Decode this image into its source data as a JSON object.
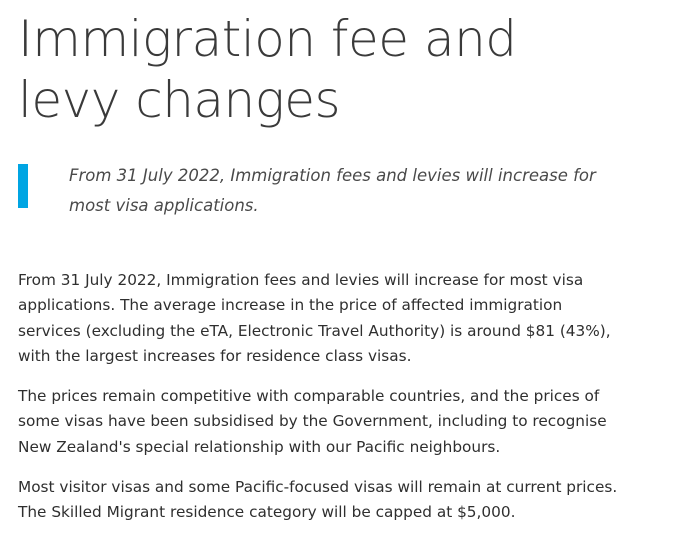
{
  "article": {
    "title": "Immigration fee and levy changes",
    "summary": "From 31 July 2022, Immigration fees and levies will increase for most visa applications.",
    "paragraphs": [
      "From 31 July 2022, Immigration fees and levies will increase for most visa applications. The average increase in the price of affected immigration services (excluding the eTA, Electronic Travel Authority) is around $81 (43%), with the largest increases for residence class visas.",
      "The prices remain competitive with comparable countries, and the prices of some visas have been subsidised by the Government, including to recognise New Zealand's special relationship with our Pacific neighbours.",
      "Most visitor visas and some Pacific-focused visas will remain at current prices. The Skilled Migrant residence category will be capped at $5,000."
    ]
  },
  "colors": {
    "accent": "#00a5e3",
    "text": "#2f2f2f",
    "heading": "#3a3a3a"
  }
}
